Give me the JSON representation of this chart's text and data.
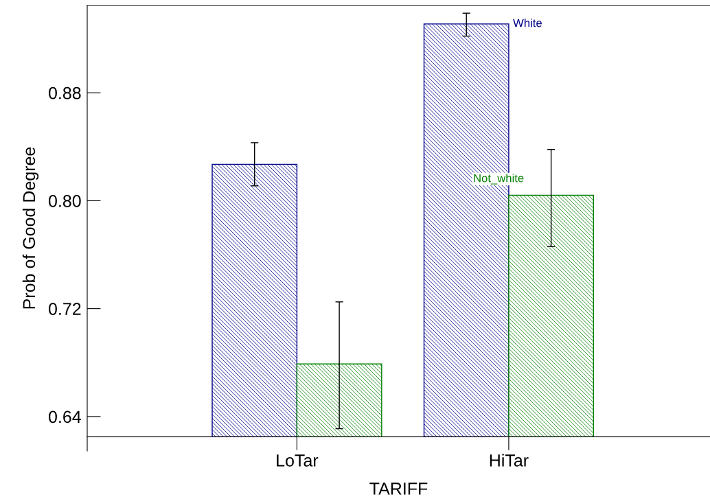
{
  "chart_data": {
    "type": "bar",
    "xlabel": "TARIFF",
    "ylabel": "Prob of Good Degree",
    "categories": [
      "LoTar",
      "HiTar"
    ],
    "series": [
      {
        "name": "White",
        "color": "#00008b",
        "base": [
          0.625,
          0.625
        ],
        "values": [
          0.202,
          0.306
        ],
        "errors": [
          [
            0.811,
            0.843
          ],
          [
            0.922,
            0.939
          ]
        ]
      },
      {
        "name": "Not_white",
        "color": "#008000",
        "base": [
          0.625,
          0.625
        ],
        "values": [
          0.054,
          0.179
        ],
        "errors": [
          [
            0.631,
            0.725
          ],
          [
            0.766,
            0.838
          ]
        ]
      }
    ],
    "ylim": [
      0.6145,
      0.9447
    ],
    "yticks": [
      0.64,
      0.72,
      {
        "value": 0.8,
        "label": "0.80"
      },
      0.88
    ],
    "grid": false,
    "legend": false
  }
}
